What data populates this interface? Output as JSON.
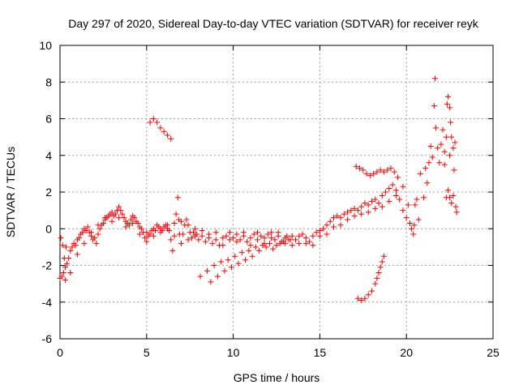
{
  "chart_data": {
    "type": "scatter",
    "title": "Day 297 of 2020, Sidereal Day-to-day VTEC variation (SDTVAR) for receiver reyk",
    "xlabel": "GPS time / hours",
    "ylabel": "SDTVAR / TECUs",
    "xlim": [
      0,
      25
    ],
    "ylim": [
      -6,
      10
    ],
    "xticks": [
      0,
      5,
      10,
      15,
      20,
      25
    ],
    "yticks": [
      -6,
      -4,
      -2,
      0,
      2,
      4,
      6,
      8,
      10
    ],
    "xtick_labels": [
      "0",
      "5",
      "10",
      "15",
      "20",
      "25"
    ],
    "ytick_labels": [
      "-6",
      "-4",
      "-2",
      "0",
      "2",
      "4",
      "6",
      "8",
      "10"
    ],
    "grid": true,
    "marker": "plus",
    "color": "#ff0000",
    "series": [
      {
        "name": "SDTVAR",
        "points": [
          [
            0.0,
            -2.7
          ],
          [
            0.05,
            -0.5
          ],
          [
            0.1,
            -2.6
          ],
          [
            0.15,
            -0.9
          ],
          [
            0.2,
            -2.4
          ],
          [
            0.25,
            -1.6
          ],
          [
            0.3,
            -2.1
          ],
          [
            0.35,
            -1.0
          ],
          [
            0.4,
            -1.9
          ],
          [
            0.5,
            -1.6
          ],
          [
            0.6,
            -1.2
          ],
          [
            0.7,
            -1.0
          ],
          [
            0.8,
            -0.8
          ],
          [
            0.9,
            -0.9
          ],
          [
            1.0,
            -0.6
          ],
          [
            1.1,
            -0.5
          ],
          [
            1.2,
            -0.3
          ],
          [
            1.3,
            -0.2
          ],
          [
            1.4,
            0.0
          ],
          [
            1.5,
            -0.1
          ],
          [
            1.6,
            0.1
          ],
          [
            1.7,
            -0.2
          ],
          [
            1.8,
            -0.4
          ],
          [
            1.9,
            -0.6
          ],
          [
            2.0,
            -0.5
          ],
          [
            2.1,
            -0.8
          ],
          [
            2.2,
            -0.3
          ],
          [
            2.3,
            0.0
          ],
          [
            2.4,
            0.2
          ],
          [
            2.5,
            0.3
          ],
          [
            2.6,
            0.5
          ],
          [
            2.7,
            0.6
          ],
          [
            2.8,
            0.7
          ],
          [
            2.9,
            0.8
          ],
          [
            3.0,
            0.9
          ],
          [
            3.1,
            0.7
          ],
          [
            3.2,
            0.8
          ],
          [
            3.3,
            1.0
          ],
          [
            3.4,
            1.2
          ],
          [
            3.5,
            1.0
          ],
          [
            3.6,
            0.8
          ],
          [
            3.7,
            0.6
          ],
          [
            3.8,
            0.4
          ],
          [
            3.9,
            0.3
          ],
          [
            4.0,
            0.2
          ],
          [
            4.1,
            0.5
          ],
          [
            4.2,
            0.7
          ],
          [
            4.3,
            0.6
          ],
          [
            4.4,
            0.4
          ],
          [
            4.5,
            0.3
          ],
          [
            4.6,
            0.1
          ],
          [
            4.7,
            0.0
          ],
          [
            4.8,
            -0.2
          ],
          [
            4.9,
            -0.5
          ],
          [
            5.0,
            -0.7
          ],
          [
            5.1,
            -0.4
          ],
          [
            5.2,
            -0.3
          ],
          [
            5.3,
            -0.1
          ],
          [
            5.4,
            0.0
          ],
          [
            5.5,
            -0.1
          ],
          [
            5.6,
            0.2
          ],
          [
            5.7,
            0.1
          ],
          [
            5.8,
            0.0
          ],
          [
            5.9,
            -0.1
          ],
          [
            6.0,
            0.1
          ],
          [
            6.1,
            0.2
          ],
          [
            6.2,
            0.0
          ],
          [
            6.3,
            -0.1
          ],
          [
            6.4,
            -0.6
          ],
          [
            6.5,
            -1.2
          ],
          [
            6.6,
            0.3
          ],
          [
            6.7,
            0.8
          ],
          [
            6.8,
            1.7
          ],
          [
            6.85,
            0.5
          ],
          [
            6.9,
            -0.3
          ],
          [
            7.0,
            -0.8
          ],
          [
            7.1,
            -0.3
          ],
          [
            7.2,
            0.2
          ],
          [
            7.3,
            0.5
          ],
          [
            7.4,
            0.2
          ],
          [
            7.5,
            -0.2
          ],
          [
            7.6,
            -0.5
          ],
          [
            7.7,
            -0.2
          ],
          [
            7.8,
            0.0
          ],
          [
            7.9,
            -0.3
          ],
          [
            8.0,
            -0.6
          ],
          [
            8.2,
            -0.4
          ],
          [
            8.4,
            -0.7
          ],
          [
            8.6,
            -0.5
          ],
          [
            8.8,
            -0.8
          ],
          [
            9.0,
            -0.6
          ],
          [
            9.2,
            -0.9
          ],
          [
            9.4,
            -0.5
          ],
          [
            9.6,
            -0.4
          ],
          [
            9.8,
            -0.6
          ],
          [
            10.0,
            -0.5
          ],
          [
            10.2,
            -0.3
          ],
          [
            10.4,
            -0.6
          ],
          [
            10.6,
            -0.4
          ],
          [
            10.8,
            -0.7
          ],
          [
            11.0,
            -0.5
          ],
          [
            11.2,
            -0.3
          ],
          [
            11.4,
            -0.6
          ],
          [
            11.6,
            -0.4
          ],
          [
            11.8,
            -0.5
          ],
          [
            12.0,
            -0.3
          ],
          [
            12.2,
            -0.2
          ],
          [
            12.4,
            -0.6
          ],
          [
            12.6,
            -0.4
          ],
          [
            12.8,
            -0.7
          ],
          [
            13.0,
            -0.8
          ],
          [
            13.2,
            -0.6
          ],
          [
            13.4,
            -0.9
          ],
          [
            13.6,
            -0.6
          ],
          [
            13.8,
            -0.4
          ],
          [
            14.0,
            -0.3
          ],
          [
            14.2,
            -0.5
          ],
          [
            14.4,
            -0.7
          ],
          [
            14.6,
            -0.4
          ],
          [
            14.8,
            -0.2
          ],
          [
            15.0,
            -0.1
          ],
          [
            15.2,
            0.0
          ],
          [
            15.4,
            0.2
          ],
          [
            15.6,
            0.4
          ],
          [
            15.8,
            0.6
          ],
          [
            16.0,
            0.7
          ],
          [
            16.2,
            0.6
          ],
          [
            16.4,
            0.8
          ],
          [
            16.6,
            0.9
          ],
          [
            16.8,
            1.0
          ],
          [
            17.0,
            1.1
          ],
          [
            17.2,
            1.0
          ],
          [
            17.4,
            1.2
          ],
          [
            17.6,
            1.4
          ],
          [
            17.8,
            1.3
          ],
          [
            18.0,
            1.5
          ],
          [
            18.2,
            1.6
          ],
          [
            18.4,
            1.4
          ],
          [
            18.6,
            1.8
          ],
          [
            18.8,
            2.0
          ],
          [
            19.0,
            2.2
          ],
          [
            19.2,
            2.4
          ],
          [
            19.4,
            2.1
          ],
          [
            19.6,
            1.6
          ],
          [
            19.8,
            1.0
          ],
          [
            20.0,
            0.6
          ],
          [
            20.2,
            0.3
          ],
          [
            20.3,
            0.0
          ],
          [
            20.4,
            -0.3
          ],
          [
            20.45,
            0.2
          ],
          [
            20.5,
            1.3
          ],
          [
            20.6,
            1.6
          ],
          [
            20.7,
            0.5
          ],
          [
            20.8,
            3.0
          ],
          [
            0.3,
            -2.8
          ],
          [
            0.6,
            -2.4
          ],
          [
            1.0,
            -1.4
          ],
          [
            1.4,
            -0.8
          ],
          [
            1.8,
            -0.2
          ],
          [
            2.2,
            0.2
          ],
          [
            2.6,
            0.6
          ],
          [
            3.0,
            0.4
          ],
          [
            3.4,
            0.6
          ],
          [
            3.8,
            0.1
          ],
          [
            4.2,
            0.3
          ],
          [
            4.6,
            -0.3
          ],
          [
            5.0,
            -0.2
          ],
          [
            5.4,
            -0.4
          ],
          [
            5.8,
            -0.2
          ],
          [
            6.2,
            0.2
          ],
          [
            6.6,
            -0.4
          ],
          [
            7.0,
            0.4
          ],
          [
            7.4,
            -0.6
          ],
          [
            7.8,
            -0.4
          ],
          [
            8.2,
            -0.1
          ],
          [
            8.6,
            -0.3
          ],
          [
            9.0,
            -0.2
          ],
          [
            9.4,
            -0.9
          ],
          [
            9.8,
            -0.2
          ],
          [
            10.2,
            -0.7
          ],
          [
            10.6,
            -0.2
          ],
          [
            11.0,
            -0.9
          ],
          [
            11.4,
            -0.2
          ],
          [
            11.8,
            -0.8
          ],
          [
            12.2,
            -0.5
          ],
          [
            12.6,
            -0.2
          ],
          [
            13.0,
            -0.5
          ],
          [
            13.4,
            -0.4
          ],
          [
            13.8,
            -0.8
          ],
          [
            14.2,
            -0.8
          ],
          [
            14.6,
            -0.9
          ],
          [
            15.0,
            -0.4
          ],
          [
            15.4,
            -0.3
          ],
          [
            15.8,
            0.1
          ],
          [
            16.2,
            0.2
          ],
          [
            16.6,
            0.5
          ],
          [
            17.0,
            0.7
          ],
          [
            17.4,
            0.8
          ],
          [
            17.8,
            0.9
          ],
          [
            18.2,
            1.1
          ],
          [
            18.6,
            1.2
          ],
          [
            19.0,
            1.5
          ],
          [
            19.4,
            1.8
          ],
          [
            19.8,
            2.3
          ],
          [
            20.1,
            1.3
          ],
          [
            5.2,
            5.8
          ],
          [
            5.4,
            6.0
          ],
          [
            5.6,
            5.8
          ],
          [
            5.8,
            5.5
          ],
          [
            6.0,
            5.3
          ],
          [
            6.2,
            5.1
          ],
          [
            6.4,
            4.9
          ],
          [
            8.1,
            -2.6
          ],
          [
            8.5,
            -2.3
          ],
          [
            8.9,
            -2.0
          ],
          [
            9.3,
            -1.8
          ],
          [
            9.7,
            -1.7
          ],
          [
            10.1,
            -1.5
          ],
          [
            10.5,
            -1.3
          ],
          [
            10.9,
            -1.2
          ],
          [
            11.3,
            -1.0
          ],
          [
            11.7,
            -0.9
          ],
          [
            12.1,
            -0.8
          ],
          [
            12.5,
            -0.9
          ],
          [
            12.9,
            -0.7
          ],
          [
            13.3,
            -0.6
          ],
          [
            8.7,
            -2.9
          ],
          [
            9.1,
            -2.6
          ],
          [
            9.5,
            -2.3
          ],
          [
            9.9,
            -2.1
          ],
          [
            10.3,
            -1.9
          ],
          [
            10.7,
            -1.7
          ],
          [
            11.1,
            -1.5
          ],
          [
            11.5,
            -1.2
          ],
          [
            11.9,
            -1.0
          ],
          [
            12.3,
            -1.1
          ],
          [
            12.7,
            -0.8
          ],
          [
            13.1,
            -0.4
          ],
          [
            17.1,
            3.4
          ],
          [
            17.3,
            3.3
          ],
          [
            17.5,
            3.2
          ],
          [
            17.7,
            3.0
          ],
          [
            17.9,
            2.9
          ],
          [
            18.1,
            3.0
          ],
          [
            18.3,
            3.1
          ],
          [
            18.5,
            3.2
          ],
          [
            18.7,
            3.1
          ],
          [
            18.9,
            3.2
          ],
          [
            19.1,
            3.3
          ],
          [
            19.3,
            3.1
          ],
          [
            19.5,
            2.8
          ],
          [
            17.2,
            -3.8
          ],
          [
            17.4,
            -3.9
          ],
          [
            17.6,
            -3.8
          ],
          [
            17.8,
            -3.6
          ],
          [
            18.0,
            -3.4
          ],
          [
            18.2,
            -3.0
          ],
          [
            18.3,
            -2.7
          ],
          [
            18.4,
            -2.4
          ],
          [
            18.5,
            -2.1
          ],
          [
            18.6,
            -1.8
          ],
          [
            18.7,
            -1.5
          ],
          [
            21.0,
            1.7
          ],
          [
            21.1,
            3.3
          ],
          [
            21.2,
            2.5
          ],
          [
            21.3,
            3.6
          ],
          [
            21.4,
            4.5
          ],
          [
            21.5,
            3.9
          ],
          [
            21.6,
            6.7
          ],
          [
            21.65,
            8.2
          ],
          [
            21.7,
            5.5
          ],
          [
            21.8,
            4.4
          ],
          [
            21.9,
            3.6
          ],
          [
            22.0,
            4.6
          ],
          [
            22.1,
            5.4
          ],
          [
            22.2,
            4.2
          ],
          [
            22.3,
            5.0
          ],
          [
            22.35,
            6.8
          ],
          [
            22.4,
            7.2
          ],
          [
            22.5,
            6.6
          ],
          [
            22.55,
            5.8
          ],
          [
            22.6,
            5.0
          ],
          [
            22.2,
            3.5
          ],
          [
            22.3,
            1.7
          ],
          [
            22.4,
            2.1
          ],
          [
            22.5,
            1.7
          ],
          [
            22.6,
            1.4
          ],
          [
            22.7,
            4.4
          ],
          [
            22.75,
            3.2
          ],
          [
            22.8,
            4.7
          ],
          [
            22.85,
            1.2
          ],
          [
            22.9,
            0.9
          ],
          [
            22.7,
            1.8
          ],
          [
            22.5,
            4.0
          ]
        ]
      }
    ]
  }
}
